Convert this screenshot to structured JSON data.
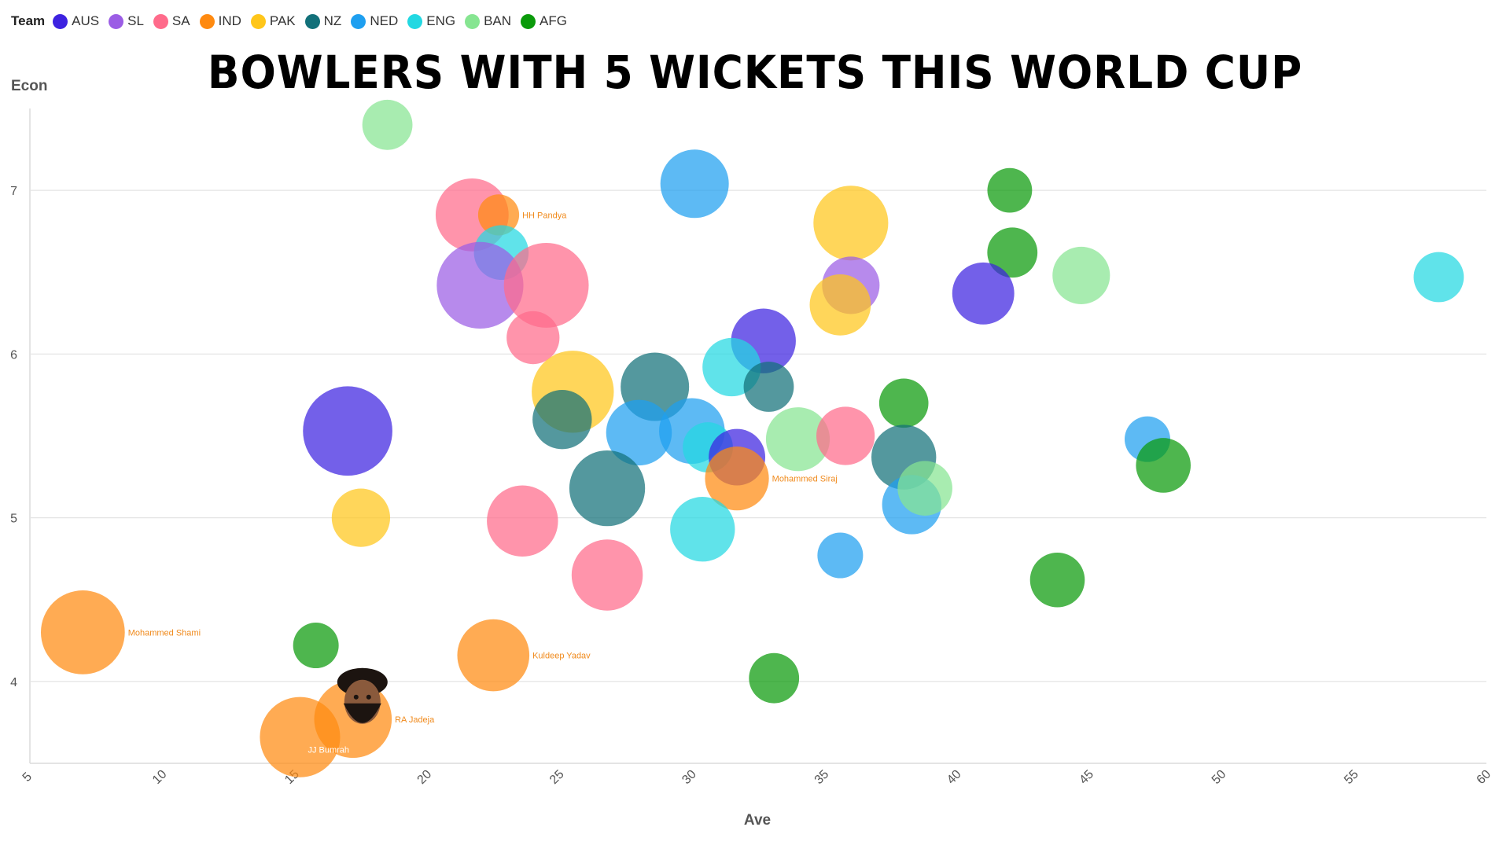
{
  "legend": {
    "title": "Team",
    "teams": [
      {
        "name": "AUS",
        "color": "#3d22e0"
      },
      {
        "name": "SL",
        "color": "#9b5de5"
      },
      {
        "name": "SA",
        "color": "#ff6b8b"
      },
      {
        "name": "IND",
        "color": "#ff8a10"
      },
      {
        "name": "PAK",
        "color": "#ffc61a"
      },
      {
        "name": "NZ",
        "color": "#127079"
      },
      {
        "name": "NED",
        "color": "#1e9ff0"
      },
      {
        "name": "ENG",
        "color": "#22d8e2"
      },
      {
        "name": "BAN",
        "color": "#86e591"
      },
      {
        "name": "AFG",
        "color": "#0a9a0a"
      }
    ]
  },
  "chart_data": {
    "type": "scatter",
    "title": "BOWLERS WITH 5 WICKETS THIS WORLD CUP",
    "xlabel": "Ave",
    "ylabel": "Econ",
    "xlim": [
      5,
      60
    ],
    "ylim": [
      3.5,
      7.5
    ],
    "xticks": [
      5,
      10,
      15,
      20,
      25,
      30,
      35,
      40,
      45,
      50,
      55,
      60
    ],
    "yticks": [
      4,
      5,
      6,
      7
    ],
    "grid": "horizontal",
    "legend_position": "top-left",
    "points": [
      {
        "team": "BAN",
        "x": 18.5,
        "y": 7.4,
        "size": 0.55
      },
      {
        "team": "SA",
        "x": 21.7,
        "y": 6.85,
        "size": 0.8
      },
      {
        "team": "IND",
        "x": 22.7,
        "y": 6.85,
        "size": 0.45,
        "label": "HH Pandya"
      },
      {
        "team": "ENG",
        "x": 22.8,
        "y": 6.62,
        "size": 0.6
      },
      {
        "team": "SL",
        "x": 22.0,
        "y": 6.42,
        "size": 0.95
      },
      {
        "team": "SA",
        "x": 24.5,
        "y": 6.42,
        "size": 0.93
      },
      {
        "team": "SA",
        "x": 24.0,
        "y": 6.1,
        "size": 0.58
      },
      {
        "team": "NED",
        "x": 30.1,
        "y": 7.04,
        "size": 0.75
      },
      {
        "team": "PAK",
        "x": 36.0,
        "y": 6.8,
        "size": 0.82
      },
      {
        "team": "SL",
        "x": 36.0,
        "y": 6.42,
        "size": 0.63
      },
      {
        "team": "PAK",
        "x": 35.6,
        "y": 6.3,
        "size": 0.67
      },
      {
        "team": "AFG",
        "x": 42.0,
        "y": 7.0,
        "size": 0.49
      },
      {
        "team": "AFG",
        "x": 42.1,
        "y": 6.62,
        "size": 0.55
      },
      {
        "team": "BAN",
        "x": 44.7,
        "y": 6.48,
        "size": 0.63
      },
      {
        "team": "AUS",
        "x": 41.0,
        "y": 6.37,
        "size": 0.68
      },
      {
        "team": "ENG",
        "x": 58.2,
        "y": 6.47,
        "size": 0.55
      },
      {
        "team": "AUS",
        "x": 32.7,
        "y": 6.08,
        "size": 0.71
      },
      {
        "team": "ENG",
        "x": 31.5,
        "y": 5.92,
        "size": 0.64
      },
      {
        "team": "NZ",
        "x": 32.9,
        "y": 5.8,
        "size": 0.55
      },
      {
        "team": "PAK",
        "x": 25.5,
        "y": 5.77,
        "size": 0.9
      },
      {
        "team": "NZ",
        "x": 28.6,
        "y": 5.8,
        "size": 0.75
      },
      {
        "team": "NZ",
        "x": 25.1,
        "y": 5.6,
        "size": 0.65
      },
      {
        "team": "NED",
        "x": 28.0,
        "y": 5.52,
        "size": 0.72
      },
      {
        "team": "NED",
        "x": 30.0,
        "y": 5.53,
        "size": 0.72
      },
      {
        "team": "ENG",
        "x": 30.6,
        "y": 5.43,
        "size": 0.55
      },
      {
        "team": "AUS",
        "x": 31.7,
        "y": 5.37,
        "size": 0.62
      },
      {
        "team": "IND",
        "x": 31.7,
        "y": 5.24,
        "size": 0.7,
        "label": "Mohammed Siraj"
      },
      {
        "team": "BAN",
        "x": 34.0,
        "y": 5.48,
        "size": 0.7
      },
      {
        "team": "SA",
        "x": 35.8,
        "y": 5.5,
        "size": 0.64
      },
      {
        "team": "AFG",
        "x": 38.0,
        "y": 5.7,
        "size": 0.54
      },
      {
        "team": "NZ",
        "x": 38.0,
        "y": 5.37,
        "size": 0.71
      },
      {
        "team": "NED",
        "x": 38.3,
        "y": 5.08,
        "size": 0.65
      },
      {
        "team": "BAN",
        "x": 38.8,
        "y": 5.18,
        "size": 0.6
      },
      {
        "team": "NED",
        "x": 47.2,
        "y": 5.48,
        "size": 0.5
      },
      {
        "team": "AFG",
        "x": 47.8,
        "y": 5.32,
        "size": 0.6
      },
      {
        "team": "AUS",
        "x": 17.0,
        "y": 5.53,
        "size": 0.98
      },
      {
        "team": "PAK",
        "x": 17.5,
        "y": 5.0,
        "size": 0.64
      },
      {
        "team": "NZ",
        "x": 26.8,
        "y": 5.18,
        "size": 0.83
      },
      {
        "team": "SA",
        "x": 23.6,
        "y": 4.98,
        "size": 0.78
      },
      {
        "team": "ENG",
        "x": 30.4,
        "y": 4.93,
        "size": 0.71
      },
      {
        "team": "SA",
        "x": 26.8,
        "y": 4.65,
        "size": 0.78
      },
      {
        "team": "NED",
        "x": 35.6,
        "y": 4.77,
        "size": 0.5
      },
      {
        "team": "AFG",
        "x": 43.8,
        "y": 4.62,
        "size": 0.6
      },
      {
        "team": "IND",
        "x": 7.0,
        "y": 4.3,
        "size": 0.92,
        "label": "Mohammed Shami"
      },
      {
        "team": "AFG",
        "x": 15.8,
        "y": 4.22,
        "size": 0.5
      },
      {
        "team": "IND",
        "x": 22.5,
        "y": 4.16,
        "size": 0.79,
        "label": "Kuldeep Yadav"
      },
      {
        "team": "AFG",
        "x": 33.1,
        "y": 4.02,
        "size": 0.55
      },
      {
        "team": "IND",
        "x": 17.2,
        "y": 3.77,
        "size": 0.85,
        "label": "RA Jadeja"
      },
      {
        "team": "IND",
        "x": 15.2,
        "y": 3.66,
        "size": 0.88,
        "label": "JJ Bumrah"
      }
    ]
  }
}
